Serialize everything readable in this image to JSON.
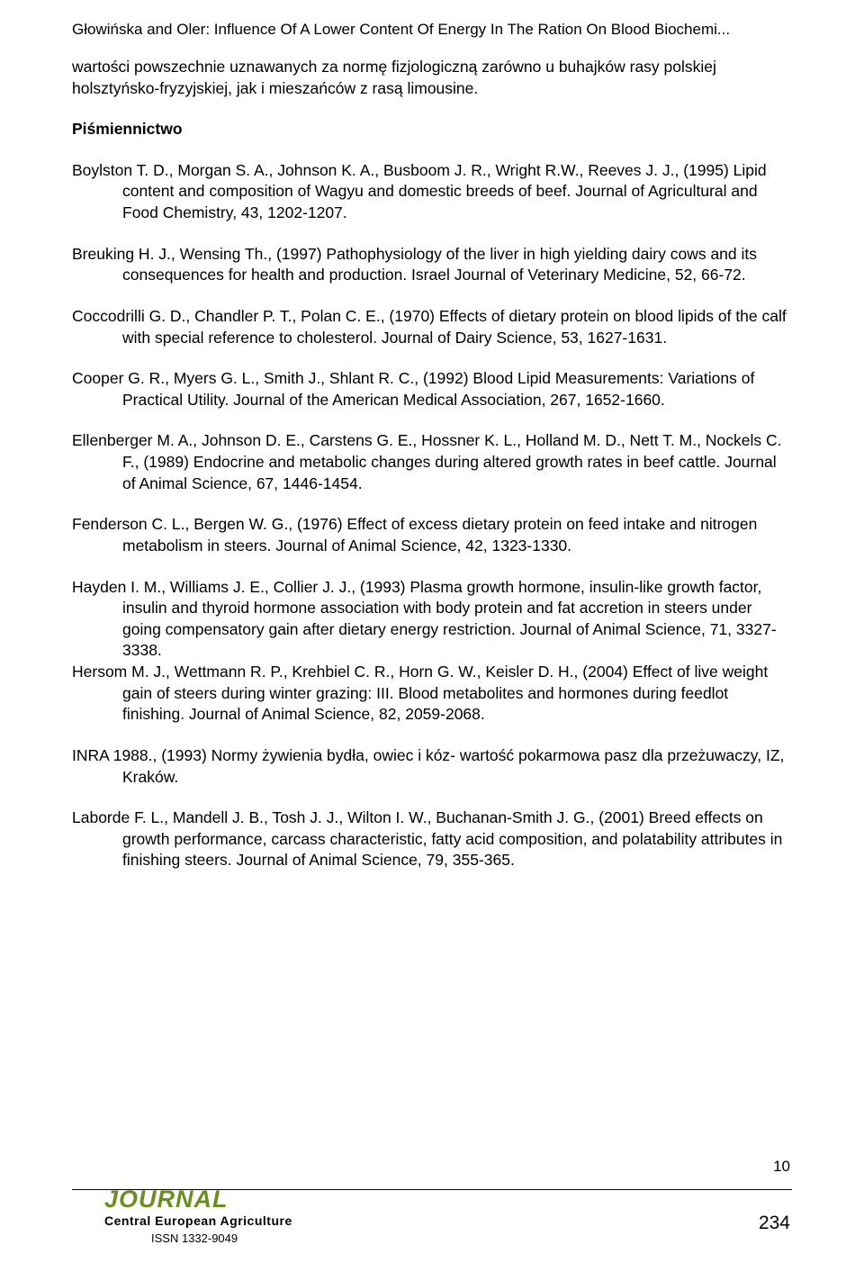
{
  "header": "Głowińska and Oler: Influence Of A Lower Content Of Energy In The Ration On Blood Biochemi...",
  "intro": "wartości powszechnie uznawanych za normę fizjologiczną zarówno u buhajków rasy polskiej holsztyńsko-fryzyjskiej, jak i mieszańców z rasą limousine.",
  "section_heading": "Piśmiennictwo",
  "refs": [
    "Boylston T. D., Morgan S. A., Johnson K. A., Busboom J. R., Wright R.W., Reeves J. J., (1995) Lipid content and composition of Wagyu and domestic breeds of beef. Journal of Agricultural and Food Chemistry, 43, 1202-1207.",
    "Breuking H. J., Wensing Th., (1997) Pathophysiology of the liver in high yielding dairy cows and its consequences for health and production. Israel Journal of Veterinary Medicine, 52, 66-72.",
    "Coccodrilli G. D., Chandler P. T., Polan C. E., (1970) Effects of dietary protein on blood lipids of the calf with special reference to cholesterol. Journal of Dairy Science, 53, 1627-1631.",
    "Cooper G. R., Myers G. L., Smith J., Shlant R. C., (1992) Blood Lipid Measurements: Variations of Practical Utility. Journal of the American Medical Association, 267, 1652-1660.",
    "Ellenberger M. A., Johnson D. E., Carstens G. E., Hossner K. L., Holland M. D., Nett T. M., Nockels C. F., (1989) Endocrine and metabolic changes during altered growth rates in beef cattle. Journal of Animal Science, 67, 1446-1454.",
    "Fenderson C. L., Bergen W. G., (1976) Effect of excess dietary protein on feed intake and nitrogen metabolism in steers. Journal of Animal Science, 42, 1323-1330.",
    "Hayden I. M., Williams J. E., Collier J. J., (1993) Plasma growth hormone, insulin-like growth factor, insulin and thyroid hormone association with body protein and fat accretion in steers under going compensatory gain after dietary energy restriction. Journal of Animal Science, 71, 3327-3338.",
    "Hersom M. J., Wettmann R. P., Krehbiel C. R., Horn G. W., Keisler D. H., (2004) Effect of live weight gain of steers during winter grazing: III. Blood metabolites and hormones during feedlot finishing. Journal of Animal Science, 82, 2059-2068.",
    "INRA 1988., (1993) Normy żywienia bydła, owiec i kóz- wartość pokarmowa pasz dla przeżuwaczy,  IZ, Kraków.",
    "Laborde F. L., Mandell J. B., Tosh J. J., Wilton I. W., Buchanan-Smith J. G., (2001) Breed effects on growth performance, carcass characteristic, fatty acid composition, and polatability attributes in finishing steers. Journal of Animal Science, 79, 355-365."
  ],
  "page_small": "10",
  "page_large": "234",
  "journal": {
    "word": "JOURNAL",
    "sub": "Central European Agriculture",
    "issn": "ISSN 1332-9049"
  }
}
